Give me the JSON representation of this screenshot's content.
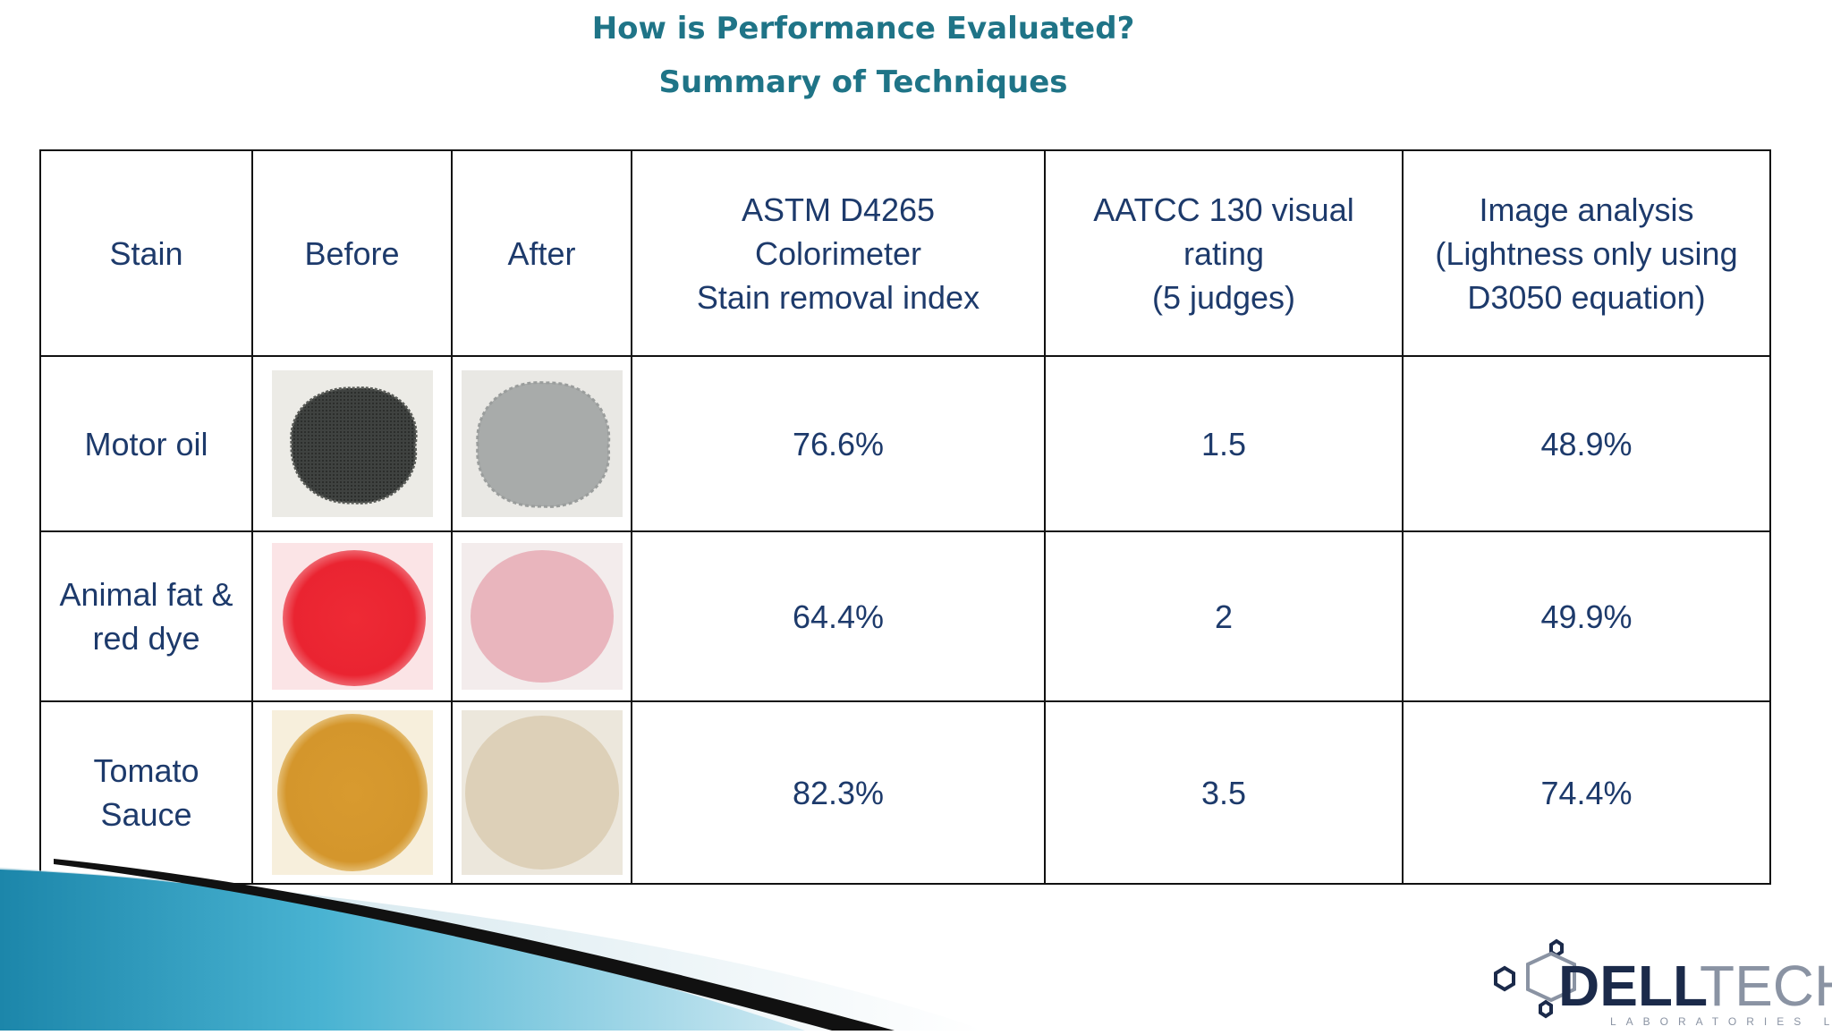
{
  "header": {
    "title": "How is Performance Evaluated?",
    "subtitle": "Summary of Techniques"
  },
  "table": {
    "columns": [
      "Stain",
      "Before",
      "After",
      "ASTM D4265\nColorimeter\nStain removal index",
      "AATCC 130 visual\nrating\n(5  judges)",
      "Image analysis\n(Lightness only using\nD3050 equation)"
    ],
    "rows": [
      {
        "stain": "Motor oil",
        "before_swatch": "dark-gray-stain-swatch",
        "after_swatch": "light-gray-stain-swatch",
        "astm": "76.6%",
        "aatcc": "1.5",
        "image_analysis": "48.9%"
      },
      {
        "stain": "Animal fat &\nred  dye",
        "before_swatch": "red-stain-swatch",
        "after_swatch": "pink-stain-swatch",
        "astm": "64.4%",
        "aatcc": "2",
        "image_analysis": "49.9%"
      },
      {
        "stain": "Tomato\nSauce",
        "before_swatch": "orange-stain-swatch",
        "after_swatch": "beige-stain-swatch",
        "astm": "82.3%",
        "aatcc": "3.5",
        "image_analysis": "74.4%"
      }
    ]
  },
  "colors": {
    "title": "#1f7487",
    "table_text": "#1d3a6b",
    "swoosh_blue": "#2a9fc0",
    "logo_dark": "#1b2a4a",
    "logo_gray": "#8a93a3"
  },
  "logo": {
    "name": "DELLTECH",
    "tagline": "LABORATORIES LTD"
  }
}
